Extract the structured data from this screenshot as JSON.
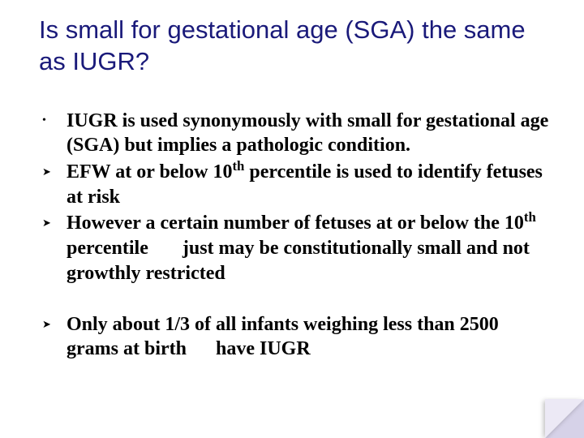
{
  "colors": {
    "title": "#1a1a7a",
    "text": "#000000",
    "background": "#ffffff",
    "corner_light": "#ece9f5",
    "corner_dark": "#d6d2e8"
  },
  "typography": {
    "title_font": "Verdana",
    "title_size_pt": 23,
    "body_font": "Times New Roman",
    "body_size_pt": 18,
    "body_weight": "bold"
  },
  "title": "Is small for gestational age (SGA) the same as IUGR?",
  "bullets": [
    {
      "mark": "•",
      "text_html": "IUGR is used synonymously with small for gestational age (SGA) but implies a pathologic condition."
    },
    {
      "mark": "➤",
      "text_html": " EFW at or below 10<sup>th</sup> percentile is used to identify fetuses at risk"
    },
    {
      "mark": "➤",
      "text_html": " However a certain number of fetuses at or below the 10<sup>th</sup> percentile&nbsp;&nbsp;&nbsp;&nbsp;&nbsp;&nbsp;&nbsp;just may be constitutionally small and not growthly restricted"
    }
  ],
  "bullets2": [
    {
      "mark": "➤",
      "text_html": "Only about 1/3 of all infants weighing less than 2500 grams at birth&nbsp;&nbsp;&nbsp;&nbsp;&nbsp;&nbsp;have IUGR"
    }
  ]
}
